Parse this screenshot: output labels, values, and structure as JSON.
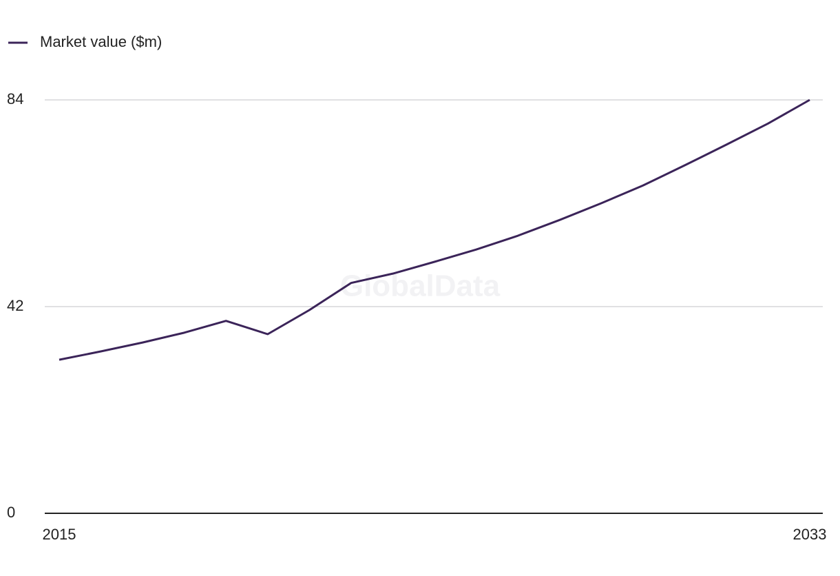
{
  "chart_data": {
    "type": "line",
    "watermark": "GlobalData",
    "x": [
      2015,
      2016,
      2017,
      2018,
      2019,
      2020,
      2021,
      2022,
      2023,
      2024,
      2025,
      2026,
      2027,
      2028,
      2029,
      2030,
      2031,
      2032,
      2033
    ],
    "series": [
      {
        "name": "Market value ($m)",
        "color": "#3b2459",
        "values": [
          31.2,
          32.9,
          34.7,
          36.7,
          39.1,
          36.4,
          41.3,
          46.8,
          48.7,
          51.1,
          53.6,
          56.4,
          59.6,
          63.0,
          66.6,
          70.7,
          74.9,
          79.2,
          84.0
        ]
      }
    ],
    "xlim": [
      2015,
      2033
    ],
    "xticks": [
      2015,
      2033
    ],
    "ylim": [
      0,
      84
    ],
    "yticks": [
      0,
      42,
      84
    ],
    "grid": true,
    "legend": "top-left"
  }
}
